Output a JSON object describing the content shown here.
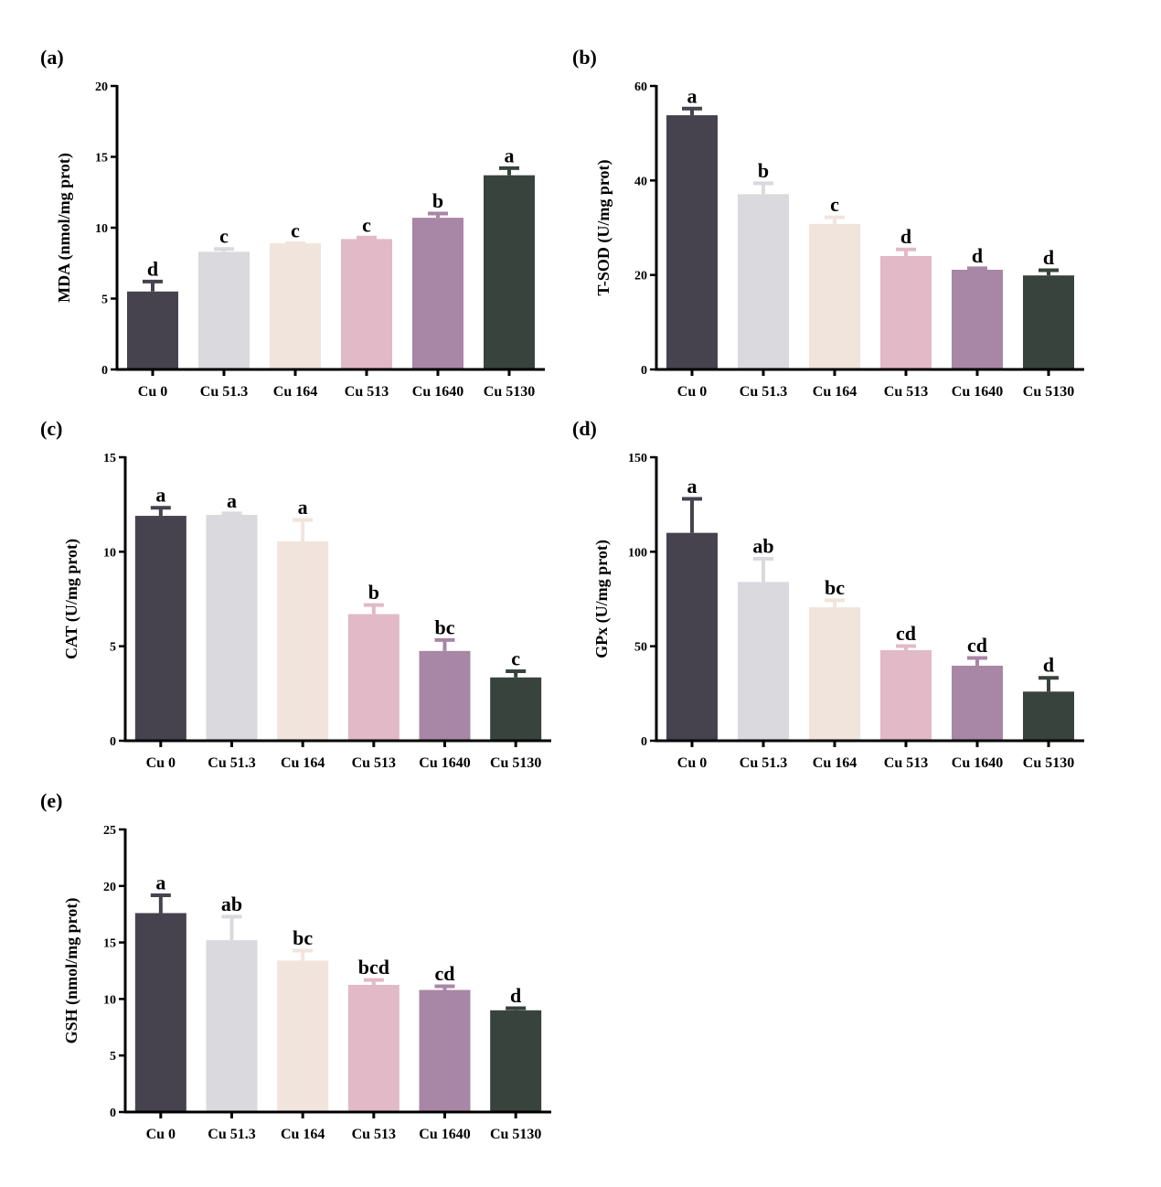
{
  "categories": [
    "Cu 0",
    "Cu 51.3",
    "Cu 164",
    "Cu 513",
    "Cu 1640",
    "Cu 5130"
  ],
  "colors": [
    "#46434f",
    "#d9d9de",
    "#f1e4dc",
    "#e2b9c6",
    "#a886a5",
    "#39433d"
  ],
  "chart_data": [
    {
      "type": "bar",
      "panel": "(a)",
      "ylabel": "MDA (nmol/mg prot)",
      "ylim": [
        0,
        20
      ],
      "yticks": [
        0,
        5,
        10,
        15,
        20
      ],
      "categories": [
        "Cu 0",
        "Cu 51.3",
        "Cu 164",
        "Cu 513",
        "Cu 1640",
        "Cu 5130"
      ],
      "values": [
        5.5,
        8.3,
        8.9,
        9.2,
        10.7,
        13.7
      ],
      "errors": [
        0.8,
        0.3,
        0.1,
        0.2,
        0.4,
        0.6
      ],
      "letters": [
        "d",
        "c",
        "c",
        "c",
        "b",
        "a"
      ]
    },
    {
      "type": "bar",
      "panel": "(b)",
      "ylabel": "T-SOD (U/mg prot)",
      "ylim": [
        0,
        60
      ],
      "yticks": [
        0,
        20,
        40,
        60
      ],
      "categories": [
        "Cu 0",
        "Cu 51.3",
        "Cu 164",
        "Cu 513",
        "Cu 1640",
        "Cu 5130"
      ],
      "values": [
        53.8,
        37.1,
        30.8,
        24.0,
        21.1,
        19.9
      ],
      "errors": [
        1.7,
        2.6,
        1.7,
        1.7,
        0.6,
        1.4
      ],
      "letters": [
        "a",
        "b",
        "c",
        "d",
        "d",
        "d"
      ]
    },
    {
      "type": "bar",
      "panel": "(c)",
      "ylabel": "CAT (U/mg prot)",
      "ylim": [
        0,
        15
      ],
      "yticks": [
        0,
        5,
        10,
        15
      ],
      "categories": [
        "Cu 0",
        "Cu 51.3",
        "Cu 164",
        "Cu 513",
        "Cu 1640",
        "Cu 5130"
      ],
      "values": [
        11.9,
        11.95,
        10.55,
        6.7,
        4.75,
        3.35
      ],
      "errors": [
        0.5,
        0.15,
        1.2,
        0.55,
        0.65,
        0.4
      ],
      "letters": [
        "a",
        "a",
        "a",
        "b",
        "bc",
        "c"
      ]
    },
    {
      "type": "bar",
      "panel": "(d)",
      "ylabel": "GPx (U/mg prot)",
      "ylim": [
        0,
        150
      ],
      "yticks": [
        0,
        50,
        100,
        150
      ],
      "categories": [
        "Cu 0",
        "Cu 51.3",
        "Cu 164",
        "Cu 513",
        "Cu 1640",
        "Cu 5130"
      ],
      "values": [
        110,
        84,
        70.6,
        47.9,
        39.7,
        26
      ],
      "errors": [
        18.7,
        13,
        4.4,
        2.9,
        4.8,
        8
      ],
      "letters": [
        "a",
        "ab",
        "bc",
        "cd",
        "cd",
        "d"
      ]
    },
    {
      "type": "bar",
      "panel": "(e)",
      "ylabel": "GSH (nmol/mg prot)",
      "ylim": [
        0,
        25
      ],
      "yticks": [
        0,
        5,
        10,
        15,
        20,
        25
      ],
      "categories": [
        "Cu 0",
        "Cu 51.3",
        "Cu 164",
        "Cu 513",
        "Cu 1640",
        "Cu 5130"
      ],
      "values": [
        17.6,
        15.2,
        13.4,
        11.25,
        10.8,
        9.0
      ],
      "errors": [
        1.7,
        2.2,
        1.0,
        0.55,
        0.45,
        0.3
      ],
      "letters": [
        "a",
        "ab",
        "bc",
        "bcd",
        "cd",
        "d"
      ]
    }
  ]
}
